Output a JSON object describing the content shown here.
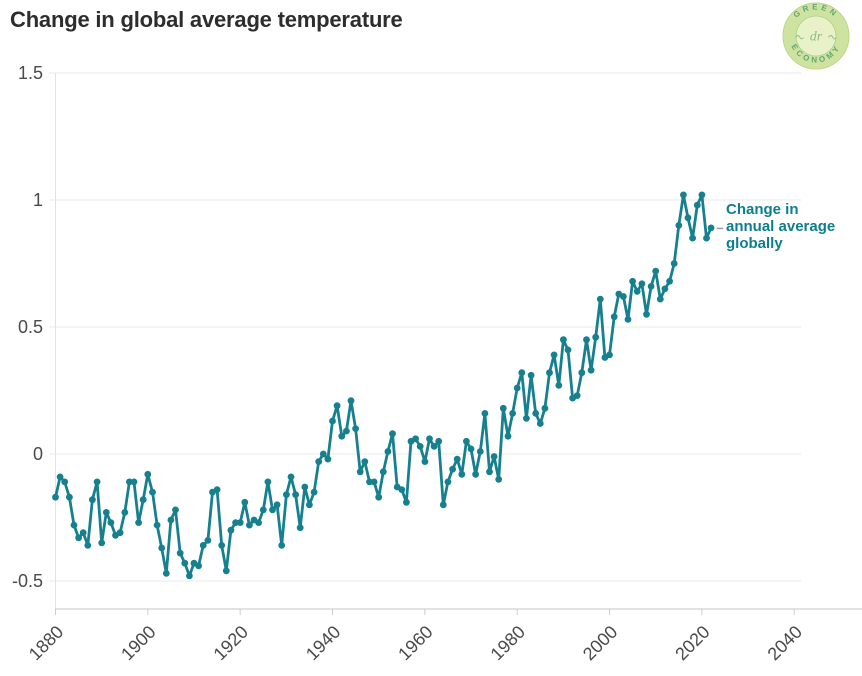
{
  "page": {
    "title": "Change in global average temperature"
  },
  "logo": {
    "top_text": "GREEN",
    "bottom_text": "ECONOMY",
    "center_text": "dr",
    "badge_bg": "#CFE3A0",
    "inner_bg": "#E8F1C8",
    "text_color": "#5FA873",
    "flourish_color": "#8FBE83"
  },
  "chart_data": {
    "type": "line",
    "title": "Change in global average temperature",
    "xlabel": "",
    "ylabel": "",
    "grid": "horizontal",
    "legend_position": "none",
    "line_color": "#17808E",
    "axis_label_color": "#4a4a4a",
    "grid_color": "#EAEAEA",
    "axis_line_color": "#D8D8D8",
    "tick_color": "#CDCDCD",
    "xlim": [
      1880,
      2040
    ],
    "ylim": [
      -0.5,
      1.5
    ],
    "x_ticks": [
      1880,
      1900,
      1920,
      1940,
      1960,
      1980,
      2000,
      2020,
      2040
    ],
    "y_ticks": [
      1.5,
      1,
      0.5,
      0,
      -0.5
    ],
    "y_tick_labels": [
      "1.5",
      "1",
      "0.5",
      "0",
      "-0.5"
    ],
    "x": [
      1880,
      1881,
      1882,
      1883,
      1884,
      1885,
      1886,
      1887,
      1888,
      1889,
      1890,
      1891,
      1892,
      1893,
      1894,
      1895,
      1896,
      1897,
      1898,
      1899,
      1900,
      1901,
      1902,
      1903,
      1904,
      1905,
      1906,
      1907,
      1908,
      1909,
      1910,
      1911,
      1912,
      1913,
      1914,
      1915,
      1916,
      1917,
      1918,
      1919,
      1920,
      1921,
      1922,
      1923,
      1924,
      1925,
      1926,
      1927,
      1928,
      1929,
      1930,
      1931,
      1932,
      1933,
      1934,
      1935,
      1936,
      1937,
      1938,
      1939,
      1940,
      1941,
      1942,
      1943,
      1944,
      1945,
      1946,
      1947,
      1948,
      1949,
      1950,
      1951,
      1952,
      1953,
      1954,
      1955,
      1956,
      1957,
      1958,
      1959,
      1960,
      1961,
      1962,
      1963,
      1964,
      1965,
      1966,
      1967,
      1968,
      1969,
      1970,
      1971,
      1972,
      1973,
      1974,
      1975,
      1976,
      1977,
      1978,
      1979,
      1980,
      1981,
      1982,
      1983,
      1984,
      1985,
      1986,
      1987,
      1988,
      1989,
      1990,
      1991,
      1992,
      1993,
      1994,
      1995,
      1996,
      1997,
      1998,
      1999,
      2000,
      2001,
      2002,
      2003,
      2004,
      2005,
      2006,
      2007,
      2008,
      2009,
      2010,
      2011,
      2012,
      2013,
      2014,
      2015,
      2016,
      2017,
      2018,
      2019,
      2020,
      2021,
      2022
    ],
    "series": [
      {
        "name": "Change in annual average globally",
        "values": [
          -0.17,
          -0.09,
          -0.11,
          -0.17,
          -0.28,
          -0.33,
          -0.31,
          -0.36,
          -0.18,
          -0.11,
          -0.35,
          -0.23,
          -0.27,
          -0.32,
          -0.31,
          -0.23,
          -0.11,
          -0.11,
          -0.27,
          -0.18,
          -0.08,
          -0.15,
          -0.28,
          -0.37,
          -0.47,
          -0.26,
          -0.22,
          -0.39,
          -0.43,
          -0.48,
          -0.43,
          -0.44,
          -0.36,
          -0.34,
          -0.15,
          -0.14,
          -0.36,
          -0.46,
          -0.3,
          -0.27,
          -0.27,
          -0.19,
          -0.28,
          -0.26,
          -0.27,
          -0.22,
          -0.11,
          -0.22,
          -0.2,
          -0.36,
          -0.16,
          -0.09,
          -0.16,
          -0.29,
          -0.13,
          -0.2,
          -0.15,
          -0.03,
          0.0,
          -0.02,
          0.13,
          0.19,
          0.07,
          0.09,
          0.21,
          0.1,
          -0.07,
          -0.03,
          -0.11,
          -0.11,
          -0.17,
          -0.07,
          0.01,
          0.08,
          -0.13,
          -0.14,
          -0.19,
          0.05,
          0.06,
          0.03,
          -0.03,
          0.06,
          0.03,
          0.05,
          -0.2,
          -0.11,
          -0.06,
          -0.02,
          -0.08,
          0.05,
          0.02,
          -0.08,
          0.01,
          0.16,
          -0.07,
          -0.01,
          -0.1,
          0.18,
          0.07,
          0.16,
          0.26,
          0.32,
          0.14,
          0.31,
          0.16,
          0.12,
          0.18,
          0.32,
          0.39,
          0.27,
          0.45,
          0.41,
          0.22,
          0.23,
          0.32,
          0.45,
          0.33,
          0.46,
          0.61,
          0.38,
          0.39,
          0.54,
          0.63,
          0.62,
          0.53,
          0.68,
          0.64,
          0.67,
          0.55,
          0.66,
          0.72,
          0.61,
          0.65,
          0.68,
          0.75,
          0.9,
          1.02,
          0.93,
          0.85,
          0.98,
          1.02,
          0.85,
          0.89
        ]
      }
    ],
    "annotation": {
      "lines": [
        "Change in",
        "annual average",
        "globally"
      ],
      "color": "#0E7D8C",
      "target_year": 2022
    }
  }
}
